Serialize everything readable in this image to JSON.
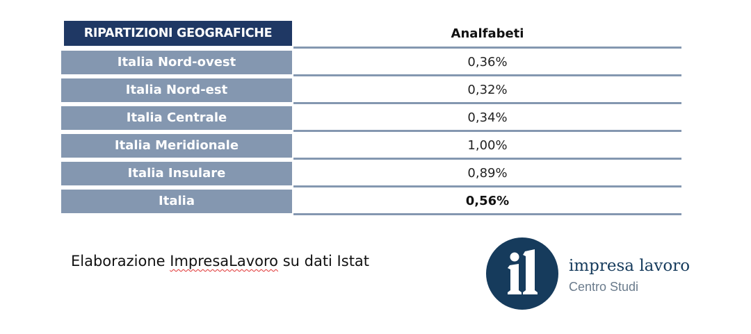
{
  "table": {
    "header_region": "RIPARTIZIONI GEOGRAFICHE",
    "header_value": "Analfabeti",
    "rows": [
      {
        "region": "Italia Nord-ovest",
        "value": "0,36%"
      },
      {
        "region": "Italia Nord-est",
        "value": "0,32%"
      },
      {
        "region": "Italia Centrale",
        "value": "0,34%"
      },
      {
        "region": "Italia Meridionale",
        "value": "1,00%"
      },
      {
        "region": "Italia Insulare",
        "value": "0,89%"
      },
      {
        "region": "Italia",
        "value": "0,56%"
      }
    ]
  },
  "caption": {
    "before": "Elaborazione ",
    "squiggled": "ImpresaLavoro",
    "after": " su dati Istat"
  },
  "logo": {
    "mark": "il",
    "name": "impresa lavoro",
    "tagline": "Centro Studi"
  },
  "colors": {
    "header_fill": "#1f3864",
    "row_fill": "#8497b0",
    "logo_fill": "#163b5c"
  }
}
